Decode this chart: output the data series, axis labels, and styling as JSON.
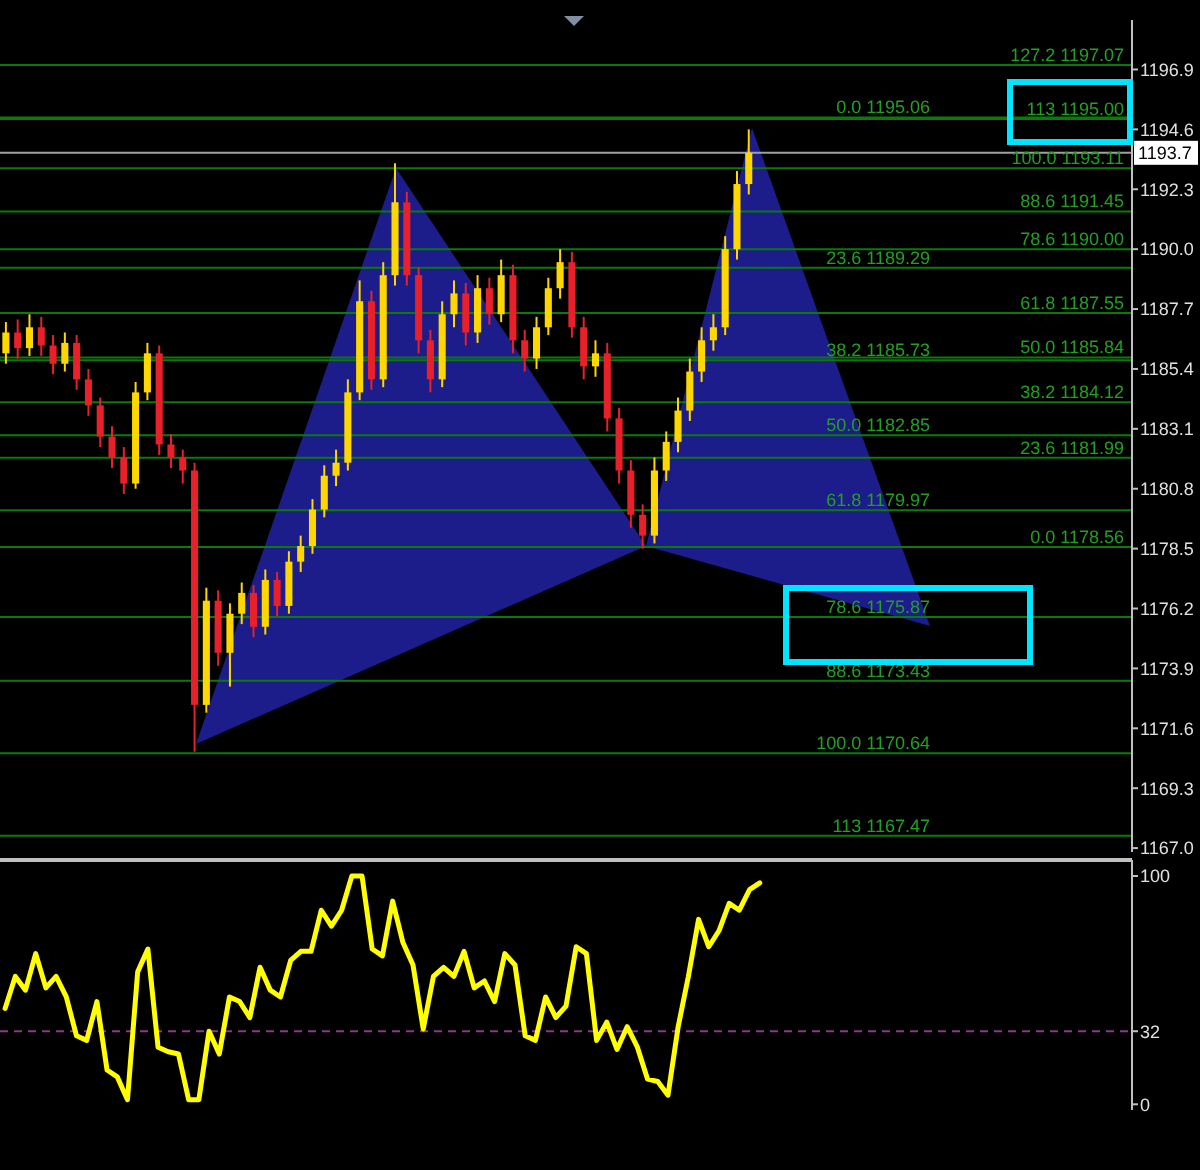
{
  "chart_data": [
    {
      "type": "candlestick",
      "categories": [
        null,
        null,
        null,
        null,
        null,
        null,
        null,
        null,
        null,
        null,
        null,
        null,
        null,
        null,
        null,
        null,
        null,
        null,
        null,
        null,
        null,
        null,
        null,
        null,
        null,
        null,
        null,
        null,
        null,
        null,
        null,
        null,
        null,
        null,
        null,
        null,
        null,
        null,
        null,
        null,
        null,
        null,
        null,
        null,
        null,
        null,
        null,
        null,
        null,
        null,
        null,
        null,
        null,
        null,
        null,
        null,
        null,
        null,
        null,
        null,
        null,
        null,
        null,
        null,
        null,
        null,
        null,
        null,
        null,
        null,
        null,
        null,
        null,
        null,
        null,
        null,
        null,
        null,
        null,
        null,
        null,
        null,
        null,
        null,
        null,
        null,
        null,
        null,
        null,
        null,
        null,
        null,
        null,
        null,
        null,
        null
      ],
      "ohlc": [
        [
          1186.0,
          1187.2,
          1185.6,
          1186.8
        ],
        [
          1186.8,
          1187.3,
          1185.8,
          1186.2
        ],
        [
          1186.2,
          1187.5,
          1185.9,
          1187.0
        ],
        [
          1187.0,
          1187.4,
          1185.9,
          1186.3
        ],
        [
          1186.3,
          1186.7,
          1185.2,
          1185.6
        ],
        [
          1185.6,
          1186.8,
          1185.3,
          1186.4
        ],
        [
          1186.4,
          1186.7,
          1184.6,
          1185.0
        ],
        [
          1185.0,
          1185.4,
          1183.6,
          1184.0
        ],
        [
          1184.0,
          1184.3,
          1182.4,
          1182.8
        ],
        [
          1182.8,
          1183.2,
          1181.6,
          1182.0
        ],
        [
          1182.0,
          1182.4,
          1180.6,
          1181.0
        ],
        [
          1181.0,
          1184.9,
          1180.8,
          1184.5
        ],
        [
          1184.5,
          1186.4,
          1184.2,
          1186.0
        ],
        [
          1186.0,
          1186.3,
          1182.1,
          1182.5
        ],
        [
          1182.5,
          1182.9,
          1181.6,
          1182.0
        ],
        [
          1182.0,
          1182.3,
          1181.0,
          1181.5
        ],
        [
          1181.5,
          1181.8,
          1170.7,
          1172.5
        ],
        [
          1172.5,
          1177.0,
          1172.2,
          1176.5
        ],
        [
          1176.5,
          1176.9,
          1174.0,
          1174.5
        ],
        [
          1174.5,
          1176.4,
          1173.2,
          1176.0
        ],
        [
          1176.0,
          1177.2,
          1175.6,
          1176.8
        ],
        [
          1176.8,
          1177.1,
          1175.1,
          1175.5
        ],
        [
          1175.5,
          1177.7,
          1175.2,
          1177.3
        ],
        [
          1177.3,
          1177.6,
          1175.9,
          1176.3
        ],
        [
          1176.3,
          1178.4,
          1176.0,
          1178.0
        ],
        [
          1178.0,
          1179.0,
          1177.6,
          1178.6
        ],
        [
          1178.6,
          1180.4,
          1178.3,
          1180.0
        ],
        [
          1180.0,
          1181.7,
          1179.7,
          1181.3
        ],
        [
          1181.3,
          1182.3,
          1180.9,
          1181.8
        ],
        [
          1181.8,
          1185.0,
          1181.5,
          1184.5
        ],
        [
          1184.5,
          1188.8,
          1184.2,
          1188.0
        ],
        [
          1188.0,
          1188.4,
          1184.6,
          1185.0
        ],
        [
          1185.0,
          1189.5,
          1184.7,
          1189.0
        ],
        [
          1189.0,
          1193.3,
          1188.6,
          1191.8
        ],
        [
          1191.8,
          1192.2,
          1188.6,
          1189.0
        ],
        [
          1189.0,
          1189.3,
          1186.0,
          1186.5
        ],
        [
          1186.5,
          1186.9,
          1184.5,
          1185.0
        ],
        [
          1185.0,
          1188.0,
          1184.7,
          1187.5
        ],
        [
          1187.5,
          1188.8,
          1187.0,
          1188.3
        ],
        [
          1188.3,
          1188.7,
          1186.3,
          1186.8
        ],
        [
          1186.8,
          1189.0,
          1186.4,
          1188.5
        ],
        [
          1188.5,
          1188.9,
          1187.1,
          1187.5
        ],
        [
          1187.5,
          1189.6,
          1187.2,
          1189.0
        ],
        [
          1189.0,
          1189.4,
          1186.0,
          1186.5
        ],
        [
          1186.5,
          1186.9,
          1185.3,
          1185.8
        ],
        [
          1185.8,
          1187.4,
          1185.4,
          1187.0
        ],
        [
          1187.0,
          1188.9,
          1186.7,
          1188.5
        ],
        [
          1188.5,
          1190.0,
          1188.1,
          1189.5
        ],
        [
          1189.5,
          1189.9,
          1186.6,
          1187.0
        ],
        [
          1187.0,
          1187.4,
          1185.0,
          1185.5
        ],
        [
          1185.5,
          1186.5,
          1185.1,
          1186.0
        ],
        [
          1186.0,
          1186.4,
          1183.0,
          1183.5
        ],
        [
          1183.5,
          1183.9,
          1181.0,
          1181.5
        ],
        [
          1181.5,
          1181.9,
          1179.3,
          1179.8
        ],
        [
          1179.8,
          1180.2,
          1178.5,
          1179.0
        ],
        [
          1179.0,
          1182.0,
          1178.7,
          1181.5
        ],
        [
          1181.5,
          1183.0,
          1181.1,
          1182.6
        ],
        [
          1182.6,
          1184.3,
          1182.2,
          1183.8
        ],
        [
          1183.8,
          1185.8,
          1183.4,
          1185.3
        ],
        [
          1185.3,
          1187.0,
          1184.9,
          1186.5
        ],
        [
          1186.5,
          1187.5,
          1186.1,
          1187.0
        ],
        [
          1187.0,
          1190.5,
          1186.7,
          1190.0
        ],
        [
          1190.0,
          1193.0,
          1189.6,
          1192.5
        ],
        [
          1192.5,
          1194.6,
          1192.1,
          1193.7
        ],
        null,
        null,
        null,
        null,
        null,
        null,
        null,
        null,
        null,
        null,
        null,
        null,
        null,
        null,
        null,
        null,
        null,
        null,
        null,
        null,
        null,
        null,
        null,
        null,
        null,
        null,
        null,
        null,
        null,
        null,
        null,
        null
      ],
      "colors": [
        "#ffd700",
        "#e8202a",
        "#ffd700",
        "#e8202a",
        "#e8202a",
        "#ffd700",
        "#e8202a",
        "#e8202a",
        "#e8202a",
        "#e8202a",
        "#e8202a",
        "#ffd700",
        "#ffd700",
        "#e8202a",
        "#e8202a",
        "#e8202a",
        "#e8202a",
        "#ffd700",
        "#e8202a",
        "#ffd700",
        "#ffd700",
        "#e8202a",
        "#ffd700",
        "#e8202a",
        "#ffd700",
        "#ffd700",
        "#ffd700",
        "#ffd700",
        "#ffd700",
        "#ffd700",
        "#ffd700",
        "#e8202a",
        "#ffd700",
        "#ffd700",
        "#e8202a",
        "#e8202a",
        "#e8202a",
        "#ffd700",
        "#ffd700",
        "#e8202a",
        "#ffd700",
        "#e8202a",
        "#ffd700",
        "#e8202a",
        "#e8202a",
        "#ffd700",
        "#ffd700",
        "#ffd700",
        "#e8202a",
        "#e8202a",
        "#ffd700",
        "#e8202a",
        "#e8202a",
        "#e8202a",
        "#e8202a",
        "#ffd700",
        "#ffd700",
        "#ffd700",
        "#ffd700",
        "#ffd700",
        "#ffd700",
        "#ffd700",
        "#ffd700",
        "#ffd700",
        null,
        null,
        null,
        null,
        null,
        null,
        null,
        null,
        null,
        null,
        null,
        null,
        null,
        null,
        null,
        null,
        null,
        null,
        null,
        null,
        null,
        null,
        null,
        null,
        null,
        null,
        null,
        null,
        null,
        null,
        null,
        null
      ],
      "ylim": [
        1166.85,
        1198.8
      ],
      "yticks": [
        {
          "value": 1167,
          "label": "1167.0"
        },
        1169.3,
        1171.6,
        1173.9,
        1176.2,
        1178.5,
        1180.8,
        1183.1,
        1185.4,
        1187.7,
        {
          "value": 1190,
          "label": "1190.0"
        },
        1192.3,
        1194.6,
        1196.9
      ],
      "ref_lines": [
        {
          "axis": "y",
          "value": 1193.7,
          "label": "1193.7",
          "color": "#a0a0a0"
        },
        {
          "axis": "y",
          "value": 1197.07,
          "label": "127.2 1197.07",
          "color": "#0b7a0b"
        },
        {
          "axis": "y",
          "value": 1195.0,
          "label": "113 1195.00",
          "color": "#0b7a0b"
        },
        {
          "axis": "y",
          "value": 1193.11,
          "label": "100.0 1193.11",
          "color": "#0b7a0b"
        },
        {
          "axis": "y",
          "value": 1191.45,
          "label": "88.6 1191.45",
          "color": "#0b7a0b"
        },
        {
          "axis": "y",
          "value": 1190.0,
          "label": "78.6 1190.00",
          "color": "#0b7a0b"
        },
        {
          "axis": "y",
          "value": 1187.55,
          "label": "61.8 1187.55",
          "color": "#0b7a0b"
        },
        {
          "axis": "y",
          "value": 1185.84,
          "label": "50.0 1185.84",
          "color": "#0b7a0b"
        },
        {
          "axis": "y",
          "value": 1184.12,
          "label": "38.2 1184.12",
          "color": "#0b7a0b"
        },
        {
          "axis": "y",
          "value": 1181.99,
          "label": "23.6 1181.99",
          "color": "#0b7a0b"
        },
        {
          "axis": "y",
          "value": 1178.56,
          "label": "0.0 1178.56",
          "color": "#0b7a0b"
        },
        {
          "axis": "y",
          "value": 1195.06,
          "label": "0.0 1195.06",
          "color": "#0b7a0b"
        },
        {
          "axis": "y",
          "value": 1189.29,
          "label": "23.6 1189.29",
          "color": "#0b7a0b"
        },
        {
          "axis": "y",
          "value": 1185.73,
          "label": "38.2 1185.73",
          "color": "#0b7a0b"
        },
        {
          "axis": "y",
          "value": 1182.85,
          "label": "50.0 1182.85",
          "color": "#0b7a0b"
        },
        {
          "axis": "y",
          "value": 1179.97,
          "label": "61.8 1179.97",
          "color": "#0b7a0b"
        },
        {
          "axis": "y",
          "value": 1175.87,
          "label": "78.6 1175.87",
          "color": "#0b7a0b"
        },
        {
          "axis": "y",
          "value": 1173.43,
          "label": "88.6 1173.43",
          "color": "#0b7a0b"
        },
        {
          "axis": "y",
          "value": 1170.64,
          "label": "100.0 1170.64",
          "color": "#0b7a0b"
        },
        {
          "axis": "y",
          "value": 1167.47,
          "label": "113 1167.47",
          "color": "#0b7a0b"
        }
      ]
    },
    {
      "type": "line",
      "categories": [
        null,
        null,
        null,
        null,
        null,
        null,
        null,
        null,
        null,
        null,
        null,
        null,
        null,
        null,
        null,
        null,
        null,
        null,
        null,
        null,
        null,
        null,
        null,
        null,
        null,
        null,
        null,
        null,
        null,
        null,
        null,
        null,
        null,
        null,
        null,
        null,
        null,
        null,
        null,
        null,
        null,
        null,
        null,
        null,
        null,
        null,
        null,
        null,
        null,
        null,
        null,
        null,
        null,
        null,
        null,
        null,
        null,
        null,
        null,
        null,
        null,
        null,
        null,
        null,
        null,
        null,
        null,
        null,
        null,
        null,
        null,
        null,
        null,
        null,
        null,
        null,
        null,
        null,
        null,
        null,
        null,
        null,
        null,
        null,
        null,
        null,
        null,
        null,
        null,
        null,
        null,
        null,
        null,
        null,
        null,
        null,
        null,
        null,
        null,
        null,
        null,
        null,
        null,
        null,
        null,
        null,
        null,
        null,
        null,
        null,
        null
      ],
      "series": [
        {
          "color": "#ffff00",
          "values": [
            42,
            56,
            50,
            66,
            51,
            56,
            47,
            30,
            28,
            45,
            15,
            12,
            2,
            58,
            68,
            25,
            23,
            22,
            2,
            2,
            32,
            22,
            47,
            45,
            38,
            60,
            50,
            47,
            63,
            67,
            67,
            85,
            78,
            85,
            100,
            100,
            68,
            65,
            89,
            71,
            61,
            33,
            56,
            60,
            56,
            67,
            51,
            54,
            45,
            66,
            61,
            30,
            28,
            47,
            38,
            43,
            69,
            66,
            28,
            36,
            24,
            34,
            25,
            11,
            10,
            4,
            34,
            56,
            81,
            69,
            76,
            88,
            85,
            94,
            97,
            null,
            null,
            null,
            null,
            null,
            null,
            null,
            null,
            null,
            null,
            null,
            null,
            null,
            null,
            null,
            null,
            null,
            null,
            null,
            null,
            null,
            null,
            null,
            null,
            null,
            null,
            null,
            null,
            null,
            null,
            null,
            null,
            null,
            null,
            null,
            null
          ]
        }
      ],
      "ylim": [
        -2.5,
        107
      ],
      "yticks": [
        0,
        32,
        100
      ],
      "ref_lines": [
        {
          "axis": "y",
          "value": 32,
          "color": "#8b3a8b",
          "line_style": "dashed"
        }
      ]
    }
  ]
}
